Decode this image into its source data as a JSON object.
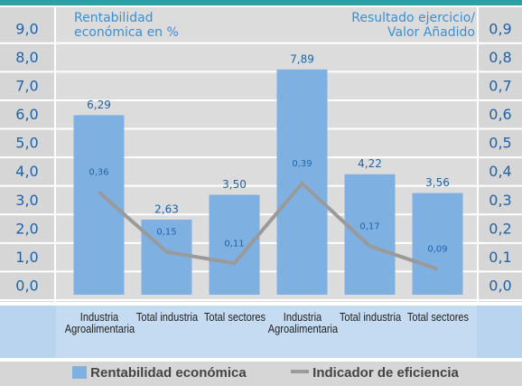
{
  "chart_data": {
    "type": "bar",
    "annotations": [
      "Rentabilidad económica en %",
      "Resultado ejercicio/ Valor Añadido"
    ],
    "categories": [
      "Industria Agroalimentaria",
      "Total industria",
      "Total sectores",
      "Industria Agroalimentaria",
      "Total industria",
      "Total sectores"
    ],
    "series": [
      {
        "name": "Rentabilidad económica",
        "color": "#7fb0e2",
        "values": [
          6.29,
          2.63,
          3.5,
          7.89,
          4.22,
          3.56
        ],
        "value_labels": [
          "6,29",
          "2,63",
          "3,50",
          "7,89",
          "4,22",
          "3,56"
        ]
      },
      {
        "name": "Indicador de eficiencia",
        "type": "line",
        "axis": "y2",
        "color": "#9a9a9a",
        "values": [
          0.36,
          0.15,
          0.11,
          0.39,
          0.17,
          0.09
        ],
        "value_labels": [
          "0,36",
          "0,15",
          "0,11",
          "0,39",
          "0,17",
          "0,09"
        ]
      }
    ],
    "ylim": [
      0,
      9.5
    ],
    "yticks": [
      {
        "value": 0,
        "label": "0,0"
      },
      {
        "value": 1,
        "label": "1,0"
      },
      {
        "value": 2,
        "label": "2,0"
      },
      {
        "value": 3,
        "label": "3,0"
      },
      {
        "value": 4,
        "label": "4,0"
      },
      {
        "value": 5,
        "label": "5,0"
      },
      {
        "value": 6,
        "label": "6,0"
      },
      {
        "value": 7,
        "label": "7,0"
      },
      {
        "value": 8,
        "label": "8,0"
      },
      {
        "value": 9,
        "label": "9,0"
      }
    ],
    "y2lim": [
      0,
      0.95
    ],
    "y2ticks": [
      {
        "value": 0,
        "label": "0,0"
      },
      {
        "value": 0.1,
        "label": "0,1"
      },
      {
        "value": 0.2,
        "label": "0,2"
      },
      {
        "value": 0.3,
        "label": "0,3"
      },
      {
        "value": 0.4,
        "label": "0,4"
      },
      {
        "value": 0.5,
        "label": "0,5"
      },
      {
        "value": 0.6,
        "label": "0,6"
      },
      {
        "value": 0.7,
        "label": "0,7"
      },
      {
        "value": 0.8,
        "label": "0,8"
      },
      {
        "value": 0.9,
        "label": "0,9"
      }
    ],
    "grid": true,
    "legend": "bottom"
  }
}
